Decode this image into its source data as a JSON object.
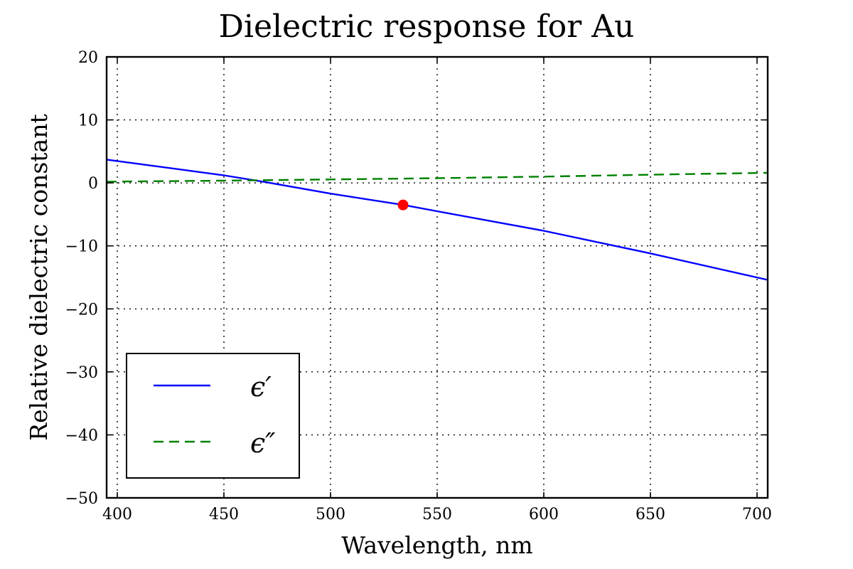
{
  "chart_data": {
    "type": "line",
    "title": "Dielectric response for Au",
    "xlabel": "Wavelength, nm",
    "ylabel": "Relative dielectric constant",
    "xlim": [
      395,
      705
    ],
    "ylim": [
      -50,
      20
    ],
    "xticks": [
      400,
      450,
      500,
      550,
      600,
      650,
      700
    ],
    "yticks": [
      20,
      10,
      0,
      -10,
      -20,
      -30,
      -40,
      -50
    ],
    "grid": true,
    "legend_position": "lower-left",
    "series": [
      {
        "name": "ϵ′",
        "color": "#0000ff",
        "style": "solid",
        "x": [
          395,
          450,
          470,
          500,
          534,
          550,
          600,
          650,
          705
        ],
        "y": [
          3.7,
          1.2,
          0.1,
          -1.7,
          -3.5,
          -4.5,
          -7.6,
          -11.2,
          -15.4
        ]
      },
      {
        "name": "ϵ″",
        "color": "#008000",
        "style": "dashed",
        "x": [
          395,
          450,
          500,
          550,
          600,
          650,
          705
        ],
        "y": [
          0.2,
          0.35,
          0.55,
          0.75,
          1.0,
          1.3,
          1.6
        ]
      }
    ],
    "markers": [
      {
        "x": 534,
        "y": -3.5,
        "color": "#ff0000"
      }
    ]
  }
}
